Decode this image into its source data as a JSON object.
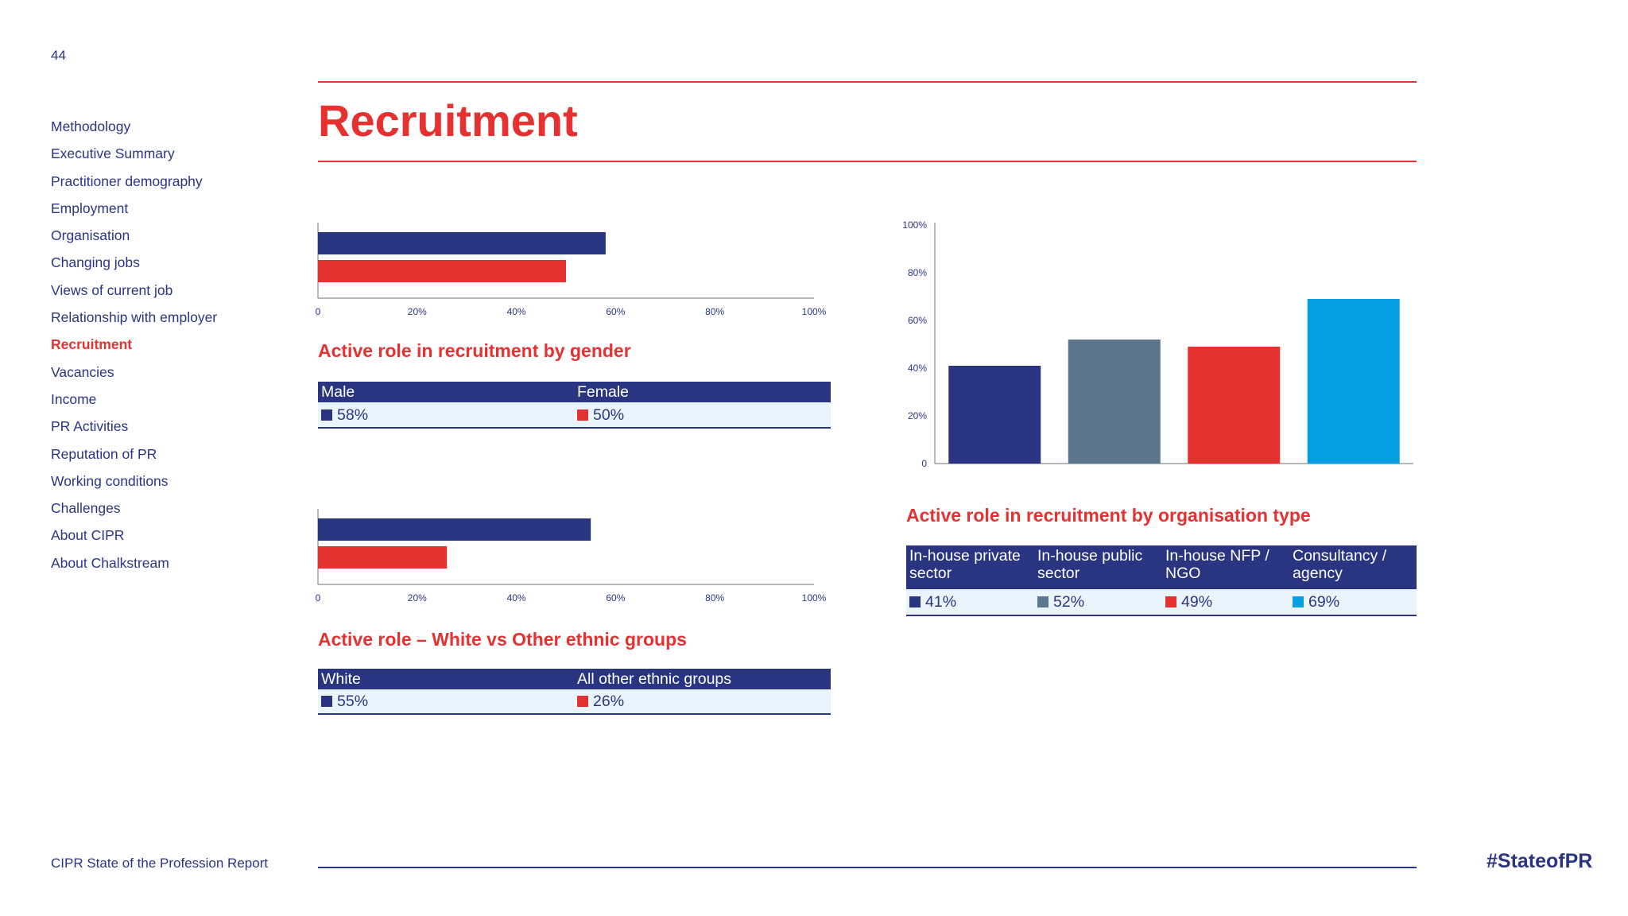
{
  "page_number": "44",
  "title": "Recruitment",
  "sidebar": {
    "items": [
      {
        "label": "Methodology",
        "active": false
      },
      {
        "label": "Executive Summary",
        "active": false
      },
      {
        "label": "Practitioner demography",
        "active": false
      },
      {
        "label": "Employment",
        "active": false
      },
      {
        "label": "Organisation",
        "active": false
      },
      {
        "label": "Changing jobs",
        "active": false
      },
      {
        "label": "Views of current job",
        "active": false
      },
      {
        "label": "Relationship with employer",
        "active": false
      },
      {
        "label": "Recruitment",
        "active": true
      },
      {
        "label": "Vacancies",
        "active": false
      },
      {
        "label": "Income",
        "active": false
      },
      {
        "label": "PR Activities",
        "active": false
      },
      {
        "label": "Reputation of PR",
        "active": false
      },
      {
        "label": "Working conditions",
        "active": false
      },
      {
        "label": "Challenges",
        "active": false
      },
      {
        "label": "About CIPR",
        "active": false
      },
      {
        "label": "About Chalkstream",
        "active": false
      }
    ]
  },
  "colors": {
    "navy": "#2a3582",
    "red": "#e53130",
    "slate": "#5c7690",
    "cyan": "#05a0e3",
    "table_row_bg": "#eaf4fd"
  },
  "chart_data": [
    {
      "type": "bar",
      "orientation": "horizontal",
      "title": "Active role in recruitment by gender",
      "categories": [
        "Male",
        "Female"
      ],
      "values": [
        58,
        50
      ],
      "display_values": [
        "58%",
        "50%"
      ],
      "colors": [
        "#2a3582",
        "#e53130"
      ],
      "x_ticks": [
        "0",
        "20%",
        "40%",
        "60%",
        "80%",
        "100%"
      ],
      "xlim": [
        0,
        100
      ],
      "grid": false
    },
    {
      "type": "bar",
      "orientation": "horizontal",
      "title": "Active role – White vs Other ethnic groups",
      "categories": [
        "White",
        "All other ethnic groups"
      ],
      "values": [
        55,
        26
      ],
      "display_values": [
        "55%",
        "26%"
      ],
      "colors": [
        "#2a3582",
        "#e53130"
      ],
      "x_ticks": [
        "0",
        "20%",
        "40%",
        "60%",
        "80%",
        "100%"
      ],
      "xlim": [
        0,
        100
      ],
      "grid": false
    },
    {
      "type": "bar",
      "orientation": "vertical",
      "title": "Active role in recruitment by organisation type",
      "categories": [
        "In-house private sector",
        "In-house public sector",
        "In-house NFP / NGO",
        "Consultancy / agency"
      ],
      "values": [
        41,
        52,
        49,
        69
      ],
      "display_values": [
        "41%",
        "52%",
        "49%",
        "69%"
      ],
      "colors": [
        "#2a3582",
        "#5c7690",
        "#e53130",
        "#05a0e3"
      ],
      "y_ticks": [
        "0",
        "20%",
        "40%",
        "60%",
        "80%",
        "100%"
      ],
      "ylim": [
        0,
        100
      ],
      "grid": false
    }
  ],
  "footer": {
    "report_name": "CIPR State of the Profession Report",
    "hashtag": "#StateofPR"
  }
}
